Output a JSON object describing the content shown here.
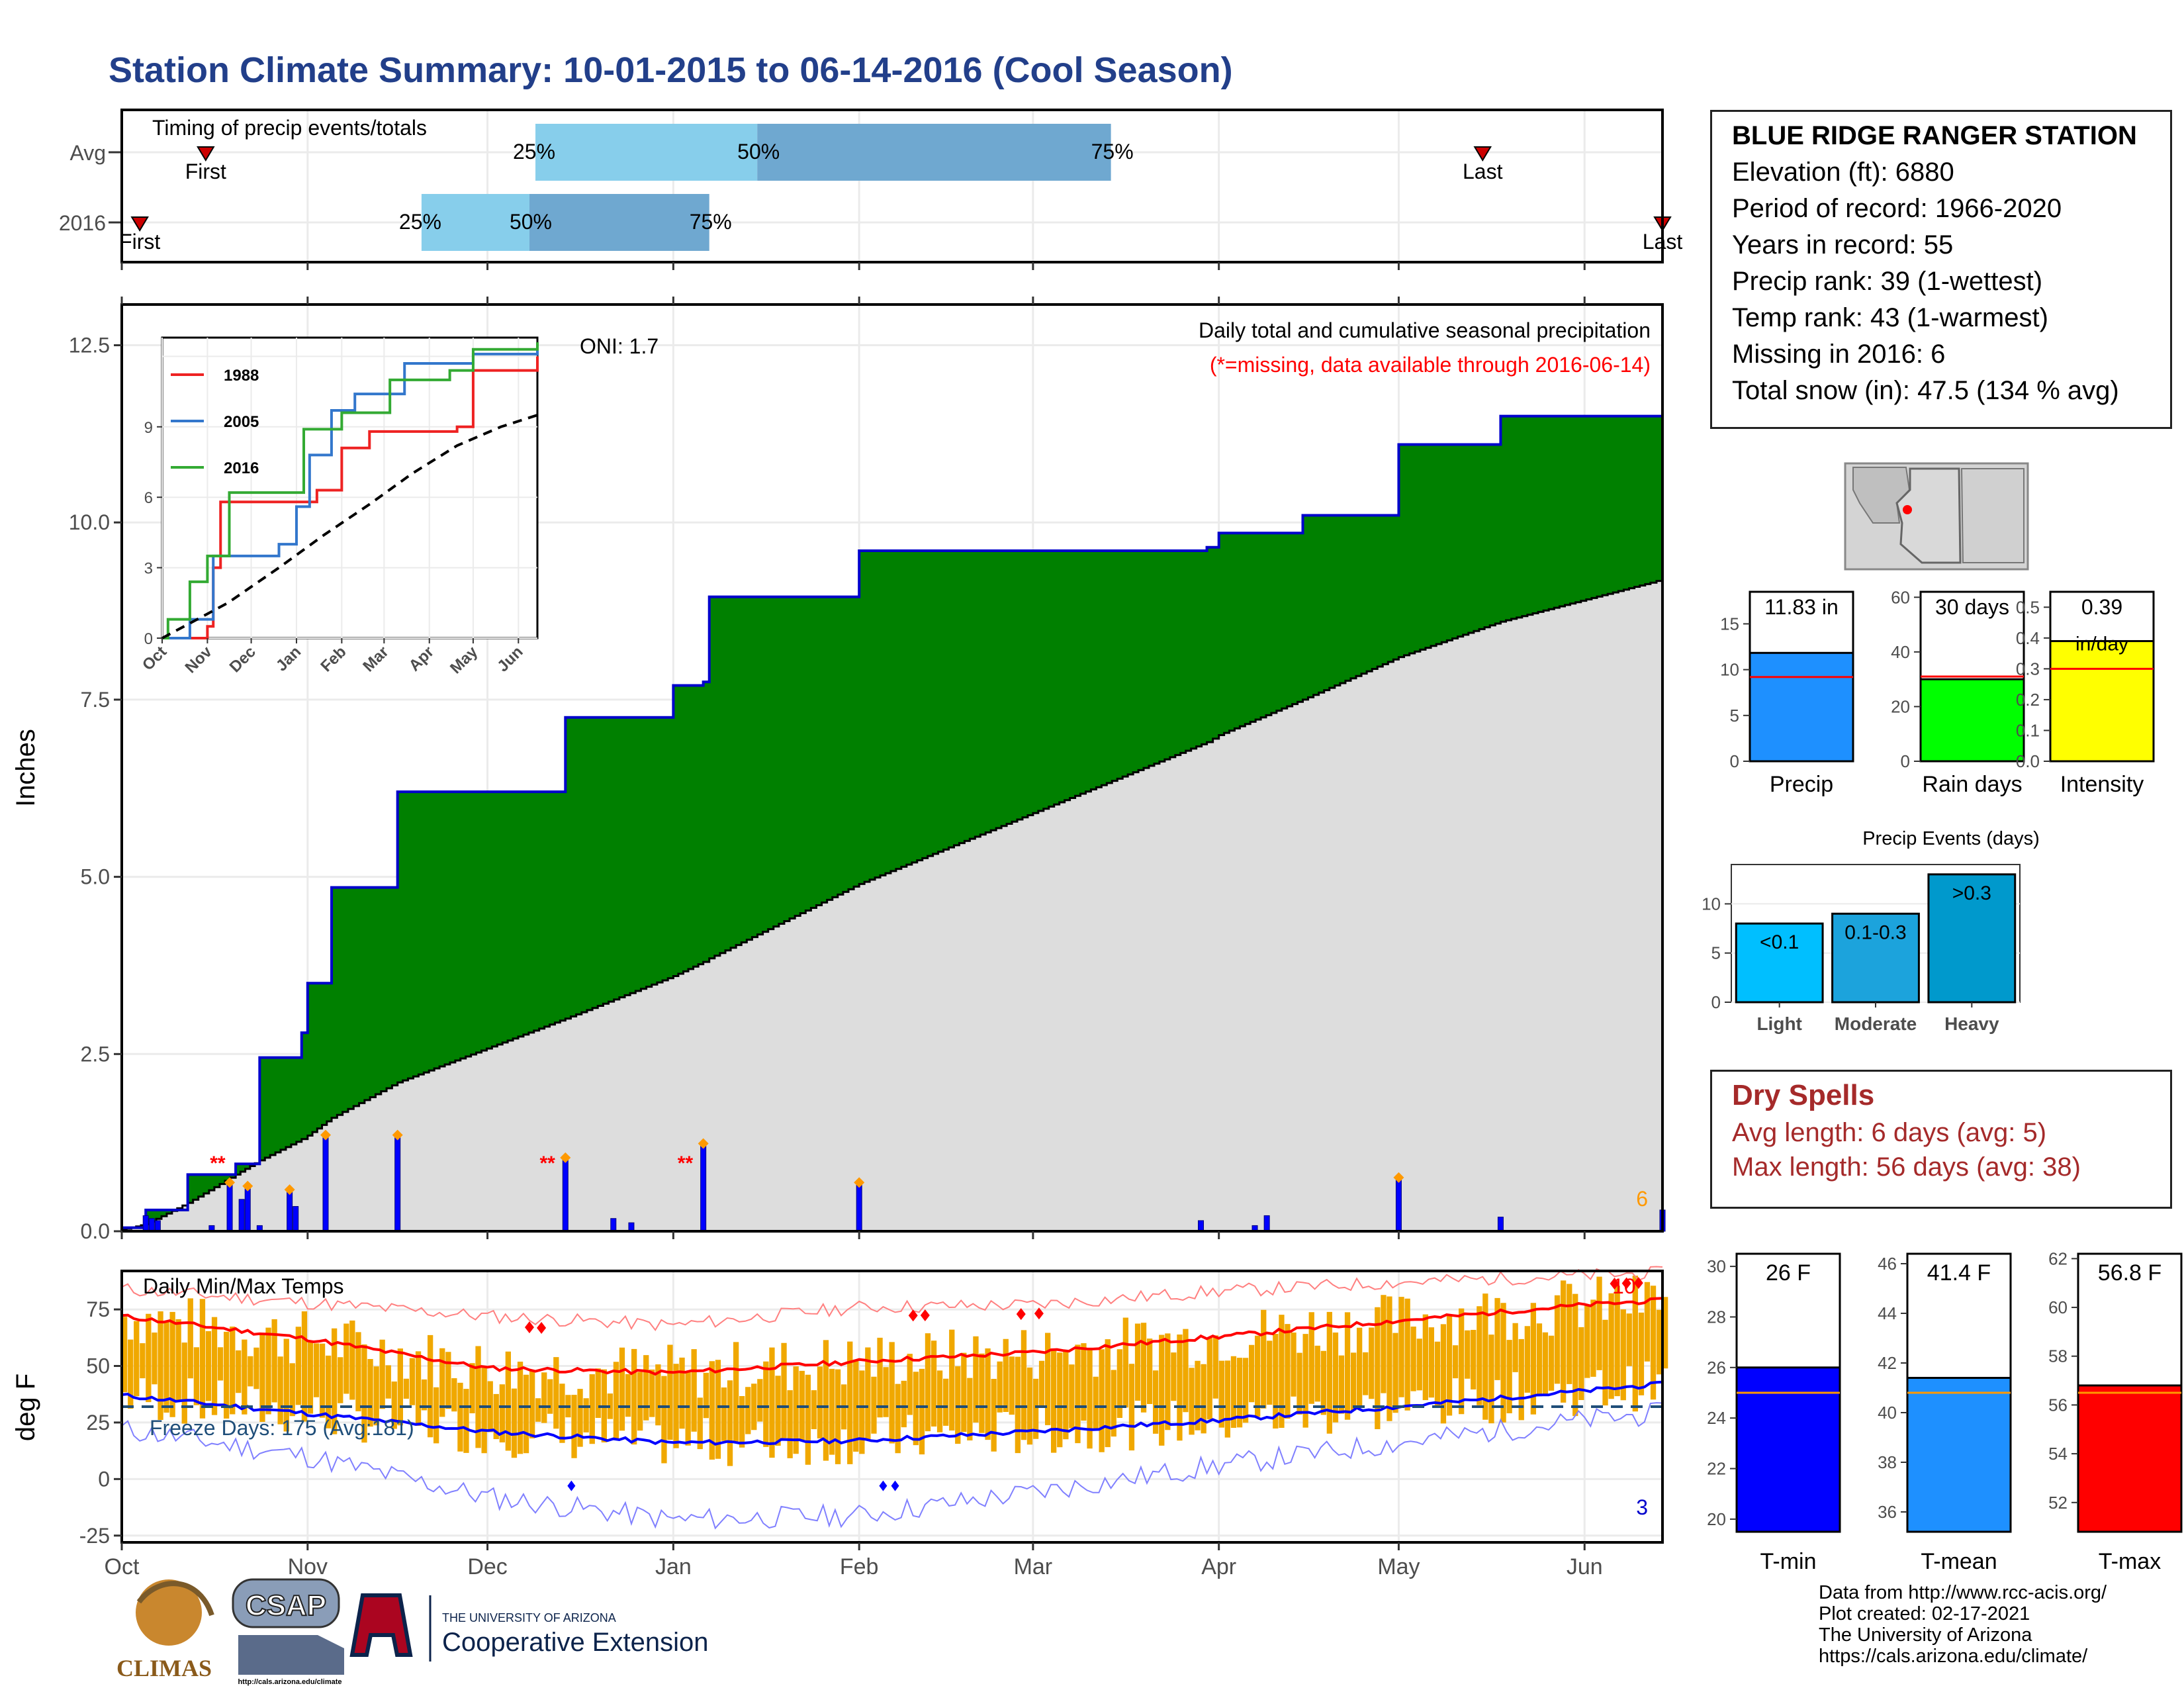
{
  "title": "Station Climate Summary: 10-01-2015 to 06-14-2016 (Cool Season)",
  "timing": {
    "title": "Timing of precip events/totals",
    "rows": [
      {
        "label": "Avg",
        "first": "2015-10-15",
        "p25": "2015-12-09",
        "p50": "2016-01-15",
        "p75": "2016-03-14",
        "last": "2016-05-15",
        "first_label": "First",
        "last_label": "Last"
      },
      {
        "label": "2016",
        "first": "2015-10-04",
        "p25": "2015-11-20",
        "p50": "2015-12-08",
        "p75": "2016-01-07",
        "last": "2016-06-14",
        "first_label": "First",
        "last_label": "Last"
      }
    ],
    "pct_labels": [
      "25%",
      "50%",
      "75%"
    ],
    "colors": {
      "light": "#87ceeb",
      "dark": "#6fa8d0",
      "marker": "#cc0000"
    }
  },
  "station": {
    "name": "BLUE RIDGE RANGER STATION",
    "lines": [
      "Elevation (ft): 6880",
      "Period of record: 1966-2020",
      "Years in record: 55",
      "Precip rank: 39 (1-wettest)",
      "Temp rank: 43 (1-warmest)",
      "Missing in 2016: 6",
      "Total snow (in): 47.5 (134 % avg)"
    ]
  },
  "map": {
    "region": "Arizona",
    "station_marker_color": "#ff0000"
  },
  "precip_chart": {
    "ylabel": "Inches",
    "annotation_title": "Daily total and cumulative seasonal precipitation",
    "annotation_missing": "(*=missing, data available through 2016-06-14)",
    "oni": "ONI: 1.7",
    "missing_count": "6",
    "yticks": [
      "0.0",
      "2.5",
      "5.0",
      "7.5",
      "10.0",
      "12.5"
    ],
    "colors": {
      "cumulative_obs": "#008000",
      "cumulative_avg": "#dddddd",
      "outline": "#0000cc",
      "daily_bar": "#0000ff"
    }
  },
  "temp_chart": {
    "ylabel": "deg F",
    "title": "Daily Min/Max Temps",
    "freeze_label": "Freeze Days: 175 (Avg:181)",
    "record_high_count": "10",
    "record_low_count": "3",
    "yticks": [
      "-25",
      "0",
      "25",
      "50",
      "75"
    ],
    "xticks": [
      "Oct",
      "Nov",
      "Dec",
      "Jan",
      "Feb",
      "Mar",
      "Apr",
      "May",
      "Jun"
    ],
    "colors": {
      "bars": "#f0a800",
      "max_avg": "#ff0000",
      "min_avg": "#0000ff",
      "freeze": "#1f4e79"
    }
  },
  "inset": {
    "legend": [
      "1988",
      "2005",
      "2016"
    ],
    "legend_colors": [
      "#ee2222",
      "#3377cc",
      "#33aa33"
    ],
    "yticks": [
      "0",
      "3",
      "6",
      "9"
    ],
    "xticks": [
      "Oct",
      "Nov",
      "Dec",
      "Jan",
      "Feb",
      "Mar",
      "Apr",
      "May",
      "Jun"
    ]
  },
  "summary_bars": {
    "precip": {
      "label": "Precip",
      "value": 11.83,
      "avg": 9.2,
      "text": "11.83 in",
      "color": "#1e90ff",
      "yticks": [
        "0",
        "5",
        "10",
        "15"
      ],
      "ymax": 18.5
    },
    "rain_days": {
      "label": "Rain days",
      "value": 30,
      "avg": 31,
      "text": "30 days",
      "color": "#00ff00",
      "yticks": [
        "0",
        "20",
        "40",
        "60"
      ],
      "ymax": 62
    },
    "intensity": {
      "label": "Intensity",
      "value": 0.39,
      "avg": 0.3,
      "text": "0.39",
      "unit": "in/day",
      "color": "#ffff00",
      "yticks": [
        "0.0",
        "0.1",
        "0.2",
        "0.3",
        "0.4",
        "0.5"
      ],
      "ymax": 0.55
    }
  },
  "precip_events": {
    "title": "Precip Events (days)",
    "categories": [
      "Light",
      "Moderate",
      "Heavy"
    ],
    "labels": [
      "<0.1",
      "0.1-0.3",
      ">0.3"
    ],
    "values": [
      8,
      9,
      13
    ],
    "colors": [
      "#00bfff",
      "#1ca3dc",
      "#0099cc"
    ],
    "yticks": [
      "0",
      "5",
      "10"
    ]
  },
  "dry_spells": {
    "title": "Dry Spells",
    "avg_line": "Avg length: 6 days (avg: 5)",
    "max_line": "Max length: 56 days (avg: 38)"
  },
  "temp_bars": {
    "tmin": {
      "label": "T-min",
      "value": 26,
      "avg": 25,
      "text": "26 F",
      "color": "#0000ff",
      "yticks": [
        "20",
        "22",
        "24",
        "26",
        "28",
        "30"
      ],
      "ymin": 19.5,
      "ymax": 30.5
    },
    "tmean": {
      "label": "T-mean",
      "value": 41.4,
      "avg": 40.8,
      "text": "41.4 F",
      "color": "#1e90ff",
      "yticks": [
        "36",
        "38",
        "40",
        "42",
        "44",
        "46"
      ],
      "ymin": 35.2,
      "ymax": 46.4
    },
    "tmax": {
      "label": "T-max",
      "value": 56.8,
      "avg": 56.5,
      "text": "56.8 F",
      "color": "#ff0000",
      "yticks": [
        "52",
        "54",
        "56",
        "58",
        "60",
        "62"
      ],
      "ymin": 50.8,
      "ymax": 62.2
    }
  },
  "footer": {
    "lines": [
      "Data from http://www.rcc-acis.org/",
      "Plot created: 02-17-2021",
      "The University of Arizona",
      "https://cals.arizona.edu/climate/"
    ],
    "logos": [
      "CLIMAS",
      "CSAP",
      "http://cals.arizona.edu/climate",
      "THE UNIVERSITY OF ARIZONA",
      "Cooperative Extension"
    ]
  },
  "chart_data": [
    {
      "type": "area",
      "title": "Daily total and cumulative seasonal precipitation",
      "ylabel": "Inches",
      "ylim": [
        0,
        13
      ],
      "x": [
        "2015-10-01",
        "2015-10-05",
        "2015-10-12",
        "2015-10-20",
        "2015-10-24",
        "2015-10-31",
        "2015-11-01",
        "2015-11-05",
        "2015-11-16",
        "2015-12-14",
        "2016-01-01",
        "2016-01-06",
        "2016-01-07",
        "2016-02-01",
        "2016-03-30",
        "2016-04-01",
        "2016-04-15",
        "2016-05-01",
        "2016-05-18",
        "2016-06-12",
        "2016-06-14"
      ],
      "series": [
        {
          "name": "cumulative 2016",
          "values": [
            0.05,
            0.3,
            0.8,
            0.95,
            2.45,
            2.8,
            3.5,
            4.85,
            6.2,
            7.25,
            7.7,
            7.75,
            8.95,
            9.6,
            9.65,
            9.85,
            10.1,
            11.1,
            11.5,
            11.5,
            11.83
          ]
        },
        {
          "name": "average cumulative",
          "values": [
            0.02,
            0.1,
            0.4,
            0.8,
            1.0,
            1.3,
            1.35,
            1.6,
            2.1,
            3.0,
            3.6,
            3.8,
            3.85,
            4.9,
            6.9,
            7.0,
            7.5,
            8.1,
            8.6,
            9.15,
            9.2
          ]
        }
      ],
      "daily_precip": {
        "x": [
          "2015-10-05",
          "2015-10-06",
          "2015-10-07",
          "2015-10-16",
          "2015-10-19",
          "2015-10-21",
          "2015-10-22",
          "2015-10-24",
          "2015-10-29",
          "2015-10-30",
          "2015-11-04",
          "2015-11-16",
          "2015-12-14",
          "2015-12-22",
          "2015-12-25",
          "2016-01-06",
          "2016-02-01",
          "2016-03-29",
          "2016-04-07",
          "2016-04-09",
          "2016-05-01",
          "2016-05-18",
          "2016-06-14"
        ],
        "values": [
          0.22,
          0.18,
          0.15,
          0.08,
          0.65,
          0.45,
          0.6,
          0.08,
          0.55,
          0.35,
          1.32,
          1.32,
          1.0,
          0.18,
          0.12,
          1.2,
          0.65,
          0.15,
          0.08,
          0.22,
          0.72,
          0.2,
          0.3
        ]
      },
      "missing_count": 6,
      "oni": 1.7
    },
    {
      "type": "bar",
      "title": "Daily Min/Max Temps",
      "ylabel": "deg F",
      "ylim": [
        -28,
        92
      ],
      "x": [
        "2015-10-01",
        "2015-11-01",
        "2015-12-01",
        "2016-01-01",
        "2016-02-01",
        "2016-03-01",
        "2016-04-01",
        "2016-05-01",
        "2016-06-01",
        "2016-06-14"
      ],
      "series": [
        {
          "name": "avg max",
          "values": [
            72,
            62,
            49,
            47,
            52,
            56,
            63,
            70,
            77,
            79
          ]
        },
        {
          "name": "avg min",
          "values": [
            37,
            29,
            21,
            16,
            17,
            21,
            26,
            32,
            39,
            42
          ]
        },
        {
          "name": "record max",
          "values": [
            84,
            78,
            72,
            68,
            76,
            77,
            83,
            87,
            90,
            91
          ]
        },
        {
          "name": "record min",
          "values": [
            22,
            10,
            -8,
            -18,
            -16,
            -6,
            6,
            16,
            26,
            29
          ]
        }
      ],
      "freeze_days": 175,
      "freeze_days_avg": 181,
      "record_high_days": 10,
      "record_low_days": 3
    }
  ]
}
